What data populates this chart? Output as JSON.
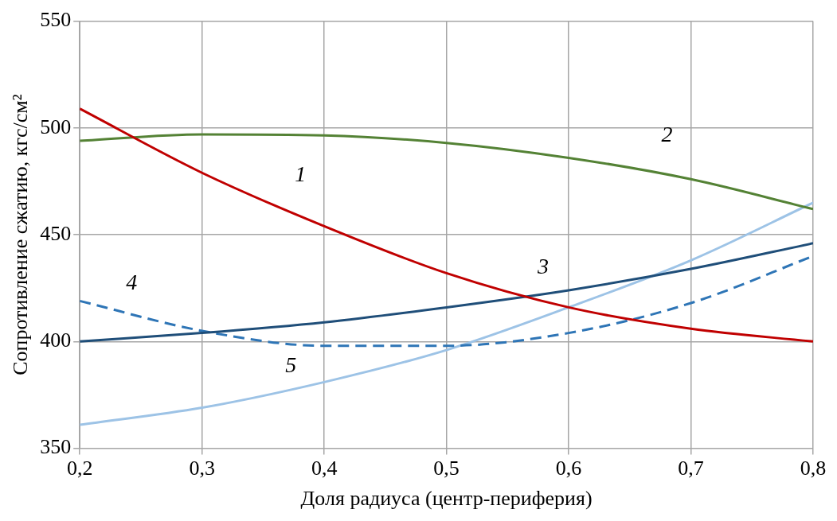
{
  "chart_data": {
    "type": "line",
    "xlabel": "Доля радиуса (центр-периферия)",
    "ylabel": "Сопротивление сжатию, кгс/см²",
    "x": [
      0.2,
      0.3,
      0.4,
      0.5,
      0.6,
      0.7,
      0.8
    ],
    "series": [
      {
        "name": "1",
        "color": "#c00000",
        "values": [
          509,
          479,
          454,
          432,
          416,
          406,
          400
        ]
      },
      {
        "name": "2",
        "color": "#548235",
        "values": [
          494,
          497,
          496.5,
          493,
          486,
          476,
          462
        ]
      },
      {
        "name": "3",
        "color": "#1f4e79",
        "values": [
          400,
          404,
          409,
          416,
          424,
          434,
          446
        ]
      },
      {
        "name": "4",
        "color": "#2e75b6",
        "line_style": "dashed",
        "values": [
          419,
          405,
          398,
          398,
          404,
          418,
          440
        ]
      },
      {
        "name": "5",
        "color": "#9dc3e6",
        "values": [
          361,
          369,
          381,
          396,
          416,
          438,
          465
        ]
      }
    ],
    "xlim": [
      0.2,
      0.8
    ],
    "xticks": [
      {
        "value": 0.2,
        "label": "0,2"
      },
      {
        "value": 0.3,
        "label": "0,3"
      },
      {
        "value": 0.4,
        "label": "0,4"
      },
      {
        "value": 0.5,
        "label": "0,5"
      },
      {
        "value": 0.6,
        "label": "0,6"
      },
      {
        "value": 0.7,
        "label": "0,7"
      },
      {
        "value": 0.8,
        "label": "0,8"
      }
    ],
    "ylim": [
      350,
      550
    ],
    "yticks": [
      350,
      400,
      450,
      500,
      550
    ],
    "grid": true,
    "legend": false,
    "marker": "none"
  }
}
